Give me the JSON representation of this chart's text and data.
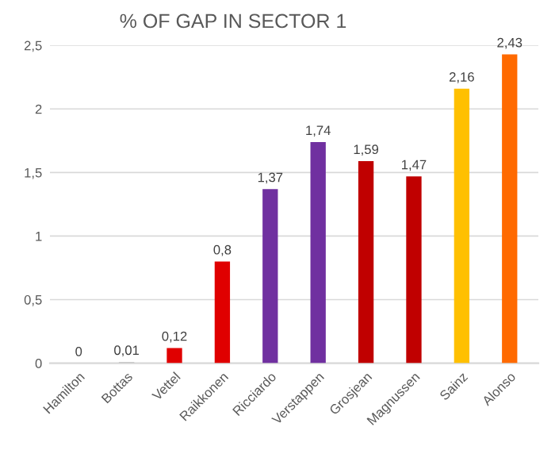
{
  "chart_data": {
    "type": "bar",
    "title": "% OF GAP IN SECTOR 1",
    "categories": [
      "Hamilton",
      "Bottas",
      "Vettel",
      "Raikkonen",
      "Ricciardo",
      "Verstappen",
      "Grosjean",
      "Magnussen",
      "Sainz",
      "Alonso"
    ],
    "values": [
      0,
      0.01,
      0.12,
      0.8,
      1.37,
      1.74,
      1.59,
      1.47,
      2.16,
      2.43
    ],
    "value_labels": [
      "0",
      "0,01",
      "0,12",
      "0,8",
      "1,37",
      "1,74",
      "1,59",
      "1,47",
      "2,16",
      "2,43"
    ],
    "colors": [
      "#a6a6a6",
      "#c8c8c8",
      "#e00000",
      "#e00000",
      "#7030a0",
      "#7030a0",
      "#c00000",
      "#c00000",
      "#ffc000",
      "#ff6a00"
    ],
    "ylim": [
      0,
      2.5
    ],
    "yticks": [
      0,
      {
        "value": 0.5,
        "label": "0,5"
      },
      1,
      {
        "value": 1.5,
        "label": "1,5"
      },
      2,
      {
        "value": 2.5,
        "label": "2,5"
      }
    ],
    "grid": "y"
  }
}
